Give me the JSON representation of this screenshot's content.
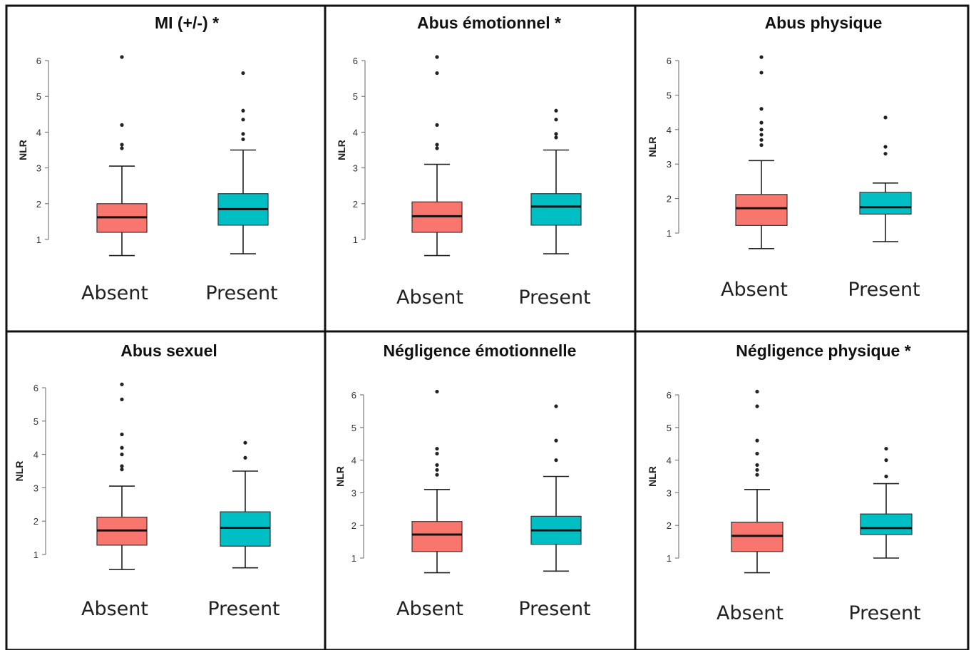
{
  "figure": {
    "ylabel": "NLR",
    "categories": [
      "Absent",
      "Present"
    ],
    "colors": {
      "absent": "#F8766D",
      "present": "#00BFC4",
      "frame": "#111111"
    }
  },
  "chart_data": [
    {
      "type": "box",
      "title": "MI (+/-)  *",
      "ylabel": "NLR",
      "yticks": [
        1,
        2,
        3,
        4,
        5,
        6
      ],
      "categories": [
        "Absent",
        "Present"
      ],
      "series": [
        {
          "category": "Absent",
          "whisker_low": 0.55,
          "q1": 1.2,
          "median": 1.62,
          "q3": 2.0,
          "whisker_high": 3.05,
          "outliers": [
            3.55,
            3.65,
            4.2,
            6.1
          ]
        },
        {
          "category": "Present",
          "whisker_low": 0.6,
          "q1": 1.4,
          "median": 1.85,
          "q3": 2.28,
          "whisker_high": 3.5,
          "outliers": [
            3.8,
            3.95,
            4.35,
            4.6,
            5.65
          ]
        }
      ]
    },
    {
      "type": "box",
      "title": "Abus émotionnel  *",
      "ylabel": "NLR",
      "yticks": [
        1,
        2,
        3,
        4,
        5,
        6
      ],
      "categories": [
        "Absent",
        "Present"
      ],
      "series": [
        {
          "category": "Absent",
          "whisker_low": 0.55,
          "q1": 1.2,
          "median": 1.65,
          "q3": 2.05,
          "whisker_high": 3.1,
          "outliers": [
            3.55,
            3.65,
            4.2,
            5.65,
            6.1
          ]
        },
        {
          "category": "Present",
          "whisker_low": 0.6,
          "q1": 1.4,
          "median": 1.92,
          "q3": 2.28,
          "whisker_high": 3.5,
          "outliers": [
            3.85,
            3.95,
            4.35,
            4.6
          ]
        }
      ]
    },
    {
      "type": "box",
      "title": "Abus physique",
      "ylabel": "NLR",
      "yticks": [
        1,
        2,
        3,
        4,
        5,
        6
      ],
      "categories": [
        "Absent",
        "Present"
      ],
      "series": [
        {
          "category": "Absent",
          "whisker_low": 0.55,
          "q1": 1.22,
          "median": 1.72,
          "q3": 2.12,
          "whisker_high": 3.1,
          "outliers": [
            3.55,
            3.7,
            3.85,
            4.0,
            4.2,
            4.6,
            5.65,
            6.1
          ]
        },
        {
          "category": "Present",
          "whisker_low": 0.75,
          "q1": 1.55,
          "median": 1.75,
          "q3": 2.18,
          "whisker_high": 2.45,
          "outliers": [
            3.3,
            3.5,
            4.35
          ]
        }
      ]
    },
    {
      "type": "box",
      "title": "Abus sexuel",
      "ylabel": "NLR",
      "yticks": [
        1,
        2,
        3,
        4,
        5,
        6
      ],
      "categories": [
        "Absent",
        "Present"
      ],
      "series": [
        {
          "category": "Absent",
          "whisker_low": 0.55,
          "q1": 1.28,
          "median": 1.72,
          "q3": 2.12,
          "whisker_high": 3.05,
          "outliers": [
            3.55,
            3.65,
            4.0,
            4.2,
            4.6,
            5.65,
            6.1
          ]
        },
        {
          "category": "Present",
          "whisker_low": 0.6,
          "q1": 1.25,
          "median": 1.8,
          "q3": 2.28,
          "whisker_high": 3.5,
          "outliers": [
            3.9,
            4.35
          ]
        }
      ]
    },
    {
      "type": "box",
      "title": "Négligence émotionnelle",
      "ylabel": "NLR",
      "yticks": [
        1,
        2,
        3,
        4,
        5,
        6
      ],
      "categories": [
        "Absent",
        "Present"
      ],
      "series": [
        {
          "category": "Absent",
          "whisker_low": 0.55,
          "q1": 1.2,
          "median": 1.72,
          "q3": 2.12,
          "whisker_high": 3.1,
          "outliers": [
            3.55,
            3.7,
            3.85,
            4.2,
            4.35,
            6.1
          ]
        },
        {
          "category": "Present",
          "whisker_low": 0.6,
          "q1": 1.42,
          "median": 1.85,
          "q3": 2.28,
          "whisker_high": 3.5,
          "outliers": [
            4.0,
            4.6,
            5.65
          ]
        }
      ]
    },
    {
      "type": "box",
      "title": "Négligence physique  *",
      "ylabel": "NLR",
      "yticks": [
        1,
        2,
        3,
        4,
        5,
        6
      ],
      "categories": [
        "Absent",
        "Present"
      ],
      "series": [
        {
          "category": "Absent",
          "whisker_low": 0.55,
          "q1": 1.2,
          "median": 1.68,
          "q3": 2.1,
          "whisker_high": 3.1,
          "outliers": [
            3.55,
            3.7,
            3.85,
            4.2,
            4.6,
            5.65,
            6.1
          ]
        },
        {
          "category": "Present",
          "whisker_low": 1.0,
          "q1": 1.72,
          "median": 1.92,
          "q3": 2.35,
          "whisker_high": 3.28,
          "outliers": [
            3.5,
            4.0,
            4.35
          ]
        }
      ]
    }
  ]
}
